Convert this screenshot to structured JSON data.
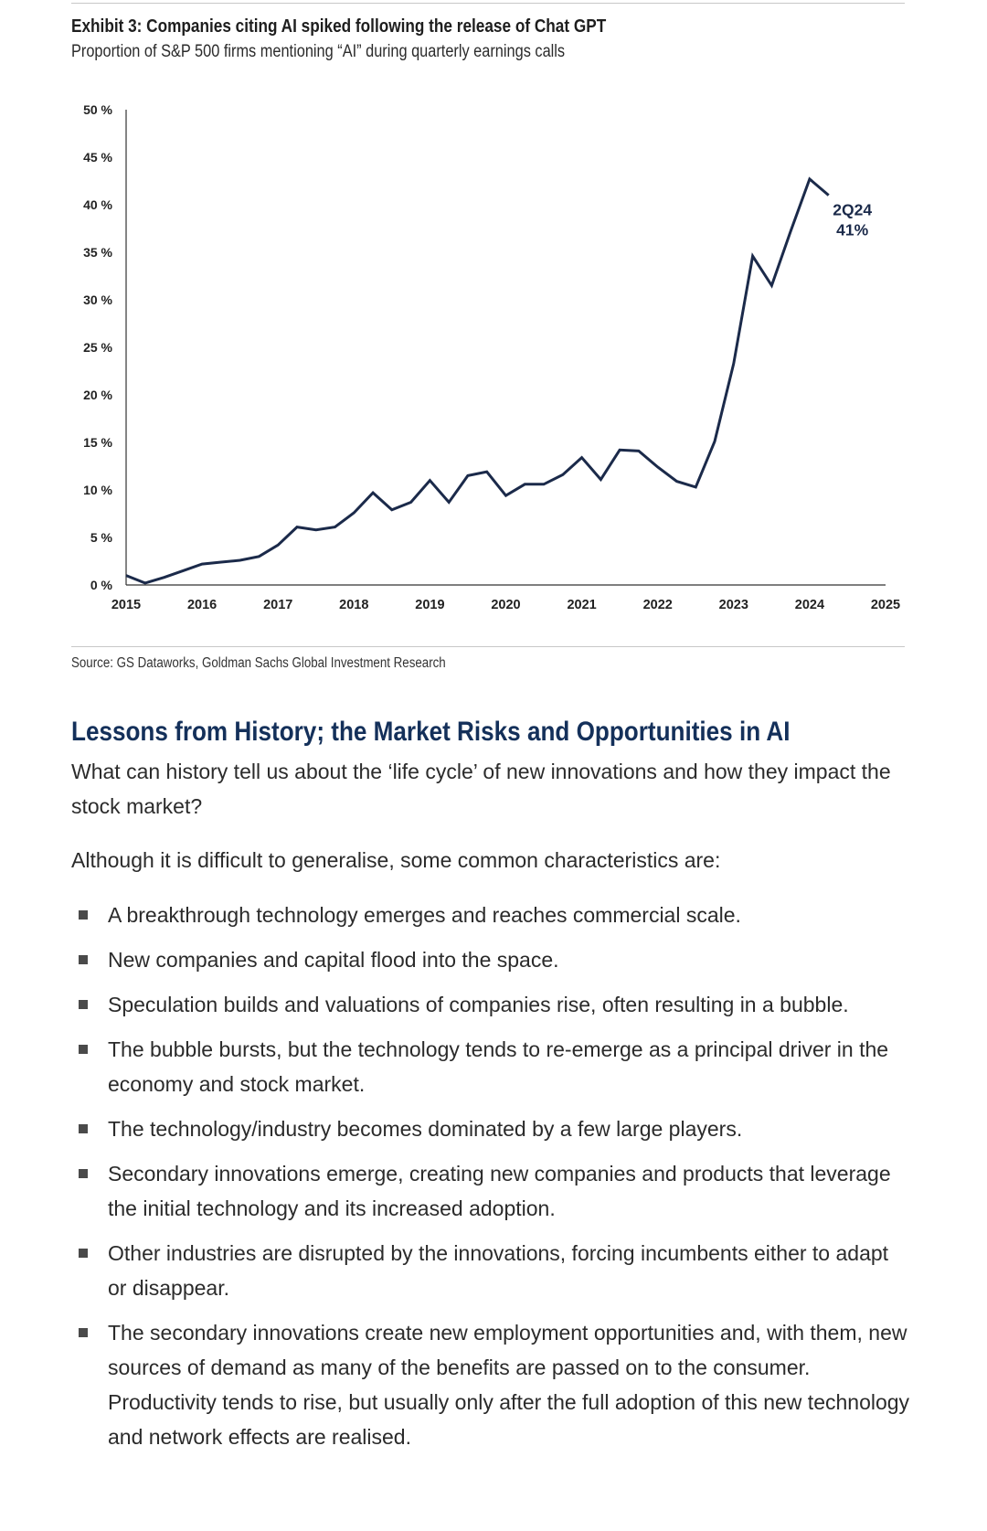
{
  "exhibit": {
    "title": "Exhibit 3: Companies citing AI spiked following the release of Chat GPT",
    "subtitle": "Proportion of S&P 500 firms mentioning “AI” during quarterly earnings calls",
    "source": "Source: GS Dataworks, Goldman Sachs Global Investment Research"
  },
  "chart_data": {
    "type": "line",
    "title": "Companies citing AI spiked following the release of Chat GPT",
    "ylabel": "",
    "xlabel": "",
    "ylim": [
      0,
      50
    ],
    "xlim": [
      2015,
      2025
    ],
    "yticks": [
      "0 %",
      "5 %",
      "10 %",
      "15 %",
      "20 %",
      "25 %",
      "30 %",
      "35 %",
      "40 %",
      "45 %",
      "50 %"
    ],
    "xticks": [
      "2015",
      "2016",
      "2017",
      "2018",
      "2019",
      "2020",
      "2021",
      "2022",
      "2023",
      "2024",
      "2025"
    ],
    "series": [
      {
        "name": "Share of S&P 500 firms mentioning AI",
        "color": "#1b2a4a",
        "x": [
          2015.0,
          2015.25,
          2015.5,
          2015.75,
          2016.0,
          2016.25,
          2016.5,
          2016.75,
          2017.0,
          2017.25,
          2017.5,
          2017.75,
          2018.0,
          2018.25,
          2018.5,
          2018.75,
          2019.0,
          2019.25,
          2019.5,
          2019.75,
          2020.0,
          2020.25,
          2020.5,
          2020.75,
          2021.0,
          2021.25,
          2021.5,
          2021.75,
          2022.0,
          2022.25,
          2022.5,
          2022.75,
          2023.0,
          2023.25,
          2023.5,
          2023.75,
          2024.0,
          2024.25
        ],
        "values": [
          1.0,
          0.2,
          0.8,
          1.5,
          2.2,
          2.4,
          2.6,
          3.0,
          4.2,
          6.1,
          5.8,
          6.1,
          7.6,
          9.7,
          7.9,
          8.7,
          11.0,
          8.7,
          11.5,
          11.9,
          9.4,
          10.6,
          10.6,
          11.6,
          13.4,
          11.1,
          14.2,
          14.1,
          12.4,
          10.9,
          10.3,
          15.1,
          23.3,
          34.6,
          31.5,
          37.2,
          42.7,
          41.0
        ]
      }
    ],
    "annotations": [
      {
        "x": 2024.25,
        "y": 41,
        "text_line1": "2Q24",
        "text_line2": "41%"
      }
    ],
    "grid": false
  },
  "section": {
    "heading": "Lessons from History; the Market Risks and Opportunities in AI",
    "intro": "What can history tell us about the ‘life cycle’ of new innovations and how they impact the stock market?",
    "lead": "Although it is difficult to generalise, some common characteristics are:",
    "bullets": [
      "A breakthrough technology emerges and reaches commercial scale.",
      "New companies and capital flood into the space.",
      "Speculation builds and valuations of companies rise, often resulting in a bubble.",
      "The bubble bursts, but the technology tends to re-emerge as a principal driver in the economy and stock market.",
      "The technology/industry becomes dominated by a few large players.",
      "Secondary innovations emerge, creating new companies and products that leverage the initial technology and its increased adoption.",
      "Other industries are disrupted by the innovations, forcing incumbents either to adapt or disappear.",
      "The secondary innovations create new employment opportunities and, with them, new sources of demand as many of the benefits are passed on to the consumer. Productivity tends to rise, but usually only after the full adoption of this new technology and network effects are realised."
    ]
  }
}
